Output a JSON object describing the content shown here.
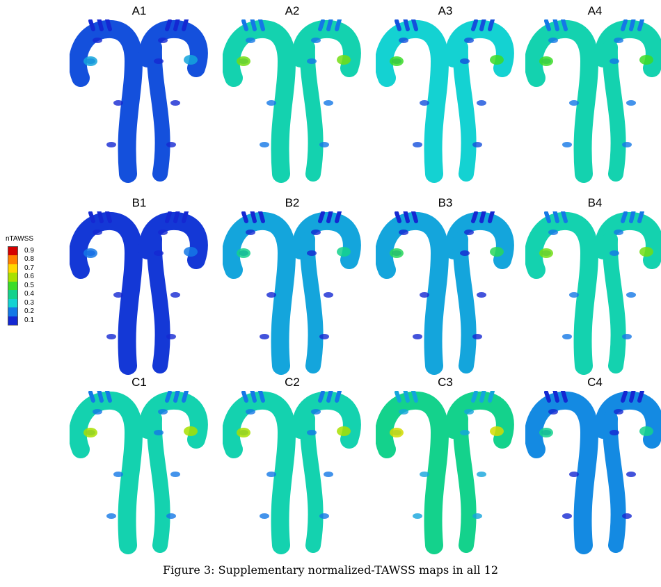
{
  "legend": {
    "title": "nTAWSS",
    "ticks": [
      "0.9",
      "0.8",
      "0.7",
      "0.6",
      "0.5",
      "0.4",
      "0.3",
      "0.2",
      "0.1"
    ],
    "colors": [
      "#d40000",
      "#ff7f00",
      "#ffd700",
      "#a8e000",
      "#3cdc28",
      "#14d28c",
      "#14d2d2",
      "#1478e6",
      "#1428d2"
    ]
  },
  "panels": [
    {
      "label": "A1",
      "level": 0.15,
      "hot": 0.25
    },
    {
      "label": "A2",
      "level": 0.35,
      "hot": 0.55
    },
    {
      "label": "A3",
      "level": 0.3,
      "hot": 0.5
    },
    {
      "label": "A4",
      "level": 0.35,
      "hot": 0.5
    },
    {
      "label": "B1",
      "level": 0.12,
      "hot": 0.2
    },
    {
      "label": "B2",
      "level": 0.25,
      "hot": 0.4
    },
    {
      "label": "B3",
      "level": 0.25,
      "hot": 0.45
    },
    {
      "label": "B4",
      "level": 0.35,
      "hot": 0.55
    },
    {
      "label": "C1",
      "level": 0.35,
      "hot": 0.6
    },
    {
      "label": "C2",
      "level": 0.35,
      "hot": 0.6
    },
    {
      "label": "C3",
      "level": 0.4,
      "hot": 0.65
    },
    {
      "label": "C4",
      "level": 0.22,
      "hot": 0.4
    }
  ],
  "caption": "Figure 3: Supplementary normalized-TAWSS maps in all 12"
}
